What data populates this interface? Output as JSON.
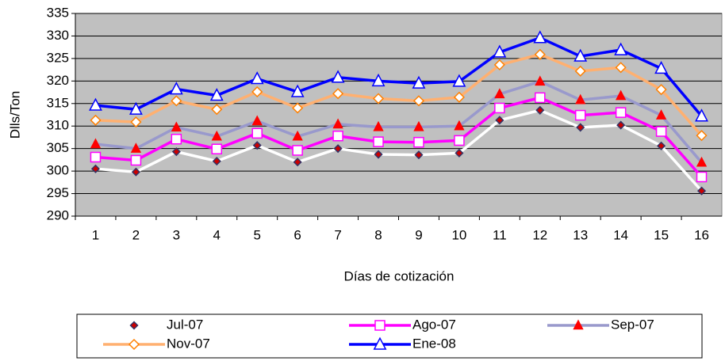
{
  "chart_data": {
    "type": "line",
    "xlabel": "Días de cotización",
    "ylabel": "Dlls/Ton",
    "categories": [
      "1",
      "2",
      "3",
      "4",
      "5",
      "6",
      "7",
      "8",
      "9",
      "10",
      "11",
      "12",
      "13",
      "14",
      "15",
      "16"
    ],
    "ylim": [
      290,
      335
    ],
    "yticks": [
      290,
      295,
      300,
      305,
      310,
      315,
      320,
      325,
      330,
      335
    ],
    "grid": true,
    "plot_background": "#c0c0c0",
    "legend": "bottom",
    "series": [
      {
        "name": "Jul-07",
        "color": "#ffffff",
        "marker": "diamond",
        "marker_fill": "#cc0000",
        "marker_stroke": "#333366",
        "values": [
          300.5,
          299.8,
          304.3,
          302.2,
          305.7,
          302.0,
          305.0,
          303.7,
          303.6,
          304.0,
          311.3,
          313.5,
          309.7,
          310.2,
          305.6,
          295.6
        ]
      },
      {
        "name": "Ago-07",
        "color": "#ff00ff",
        "marker": "square",
        "marker_fill": "#ffffff",
        "marker_stroke": "#ff00ff",
        "values": [
          303.1,
          302.4,
          307.1,
          304.9,
          308.4,
          304.6,
          307.8,
          306.5,
          306.4,
          306.8,
          314.0,
          316.3,
          312.4,
          313.0,
          308.8,
          298.7
        ]
      },
      {
        "name": "Sep-07",
        "color": "#9999cc",
        "marker": "triangle",
        "marker_fill": "#ff0000",
        "marker_stroke": "#ff0000",
        "values": [
          306.0,
          305.0,
          309.7,
          307.7,
          311.1,
          307.7,
          310.4,
          309.8,
          309.8,
          310.0,
          317.1,
          319.9,
          315.8,
          316.7,
          312.4,
          301.9
        ]
      },
      {
        "name": "Nov-07",
        "color": "#ffb070",
        "marker": "diamond",
        "marker_fill": "#ffffff",
        "marker_stroke": "#ff8000",
        "values": [
          311.3,
          310.9,
          315.6,
          313.7,
          317.6,
          314.0,
          317.2,
          316.1,
          315.6,
          316.4,
          323.6,
          325.9,
          322.2,
          323.0,
          318.1,
          307.9
        ]
      },
      {
        "name": "Ene-08",
        "color": "#0000ff",
        "marker": "triangle",
        "marker_fill": "#ffffff",
        "marker_stroke": "#0000ff",
        "values": [
          314.6,
          313.7,
          318.2,
          316.8,
          320.5,
          317.6,
          320.8,
          320.0,
          319.5,
          319.9,
          326.4,
          329.6,
          325.5,
          326.9,
          322.8,
          312.2
        ]
      }
    ]
  }
}
